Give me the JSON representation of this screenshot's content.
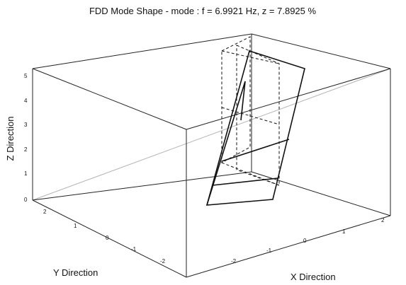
{
  "title": "FDD Mode Shape - mode : f = 6.9921 Hz, z = 7.8925 %",
  "axes": {
    "x_label": "X Direction",
    "y_label": "Y Direction",
    "z_label": "Z Direction",
    "z_ticks": [
      "0",
      "1",
      "2",
      "3",
      "4",
      "5"
    ],
    "y_ticks": [
      "2",
      "1",
      "0",
      "-1",
      "-2"
    ],
    "x_ticks": [
      "-2",
      "-1",
      "0",
      "1",
      "2"
    ]
  },
  "legend": {
    "undeformed_style": "dashed",
    "mode_shape_style": "solid"
  }
}
